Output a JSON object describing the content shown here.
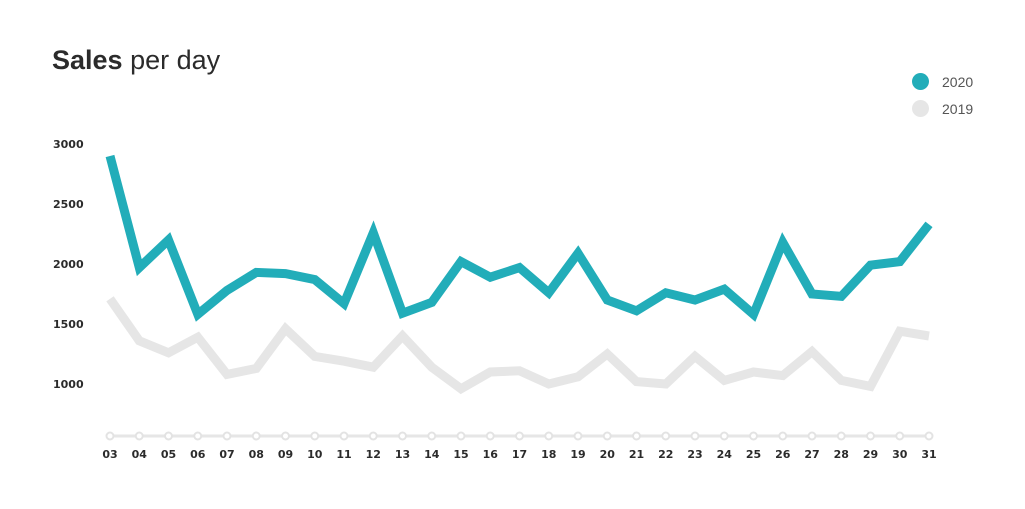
{
  "chart_data": {
    "type": "line",
    "title_bold": "Sales",
    "title_rest": "per day",
    "xlabel": "",
    "ylabel": "",
    "categories": [
      "03",
      "04",
      "05",
      "06",
      "07",
      "08",
      "09",
      "10",
      "11",
      "12",
      "13",
      "14",
      "15",
      "16",
      "17",
      "18",
      "19",
      "20",
      "21",
      "22",
      "23",
      "24",
      "25",
      "26",
      "27",
      "28",
      "29",
      "30",
      "31"
    ],
    "ylim": [
      600,
      3000
    ],
    "yticks": [
      1000,
      1500,
      2000,
      2500,
      3000
    ],
    "grid": false,
    "legend_position": "top-right",
    "series": [
      {
        "name": "2020",
        "color": "#22adb9",
        "values": [
          2900,
          1970,
          2200,
          1580,
          1780,
          1930,
          1920,
          1870,
          1670,
          2260,
          1590,
          1680,
          2020,
          1890,
          1970,
          1760,
          2090,
          1700,
          1610,
          1760,
          1700,
          1790,
          1580,
          2180,
          1750,
          1730,
          1990,
          2020,
          2330
        ]
      },
      {
        "name": "2019",
        "color": "#e6e6e6",
        "values": [
          1710,
          1360,
          1260,
          1390,
          1080,
          1130,
          1460,
          1230,
          1190,
          1140,
          1400,
          1140,
          960,
          1100,
          1110,
          1000,
          1060,
          1250,
          1020,
          1000,
          1230,
          1030,
          1100,
          1070,
          1270,
          1030,
          980,
          1440,
          1400
        ]
      }
    ]
  }
}
